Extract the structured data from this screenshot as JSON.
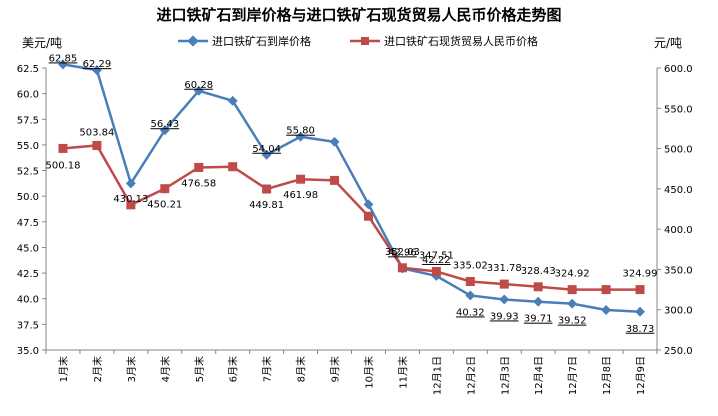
{
  "chart_data": {
    "type": "line",
    "title": "进口铁矿石到岸价格与进口铁矿石现货贸易人民币价格走势图",
    "ylabel_left": "美元/吨",
    "ylabel_right": "元/吨",
    "categories": [
      "1月末",
      "2月末",
      "3月末",
      "4月末",
      "5月末",
      "6月末",
      "7月末",
      "8月末",
      "9月末",
      "10月末",
      "11月末",
      "12月1日",
      "12月2日",
      "12月3日",
      "12月4日",
      "12月7日",
      "12月8日",
      "12月9日"
    ],
    "ylim_left": [
      35.0,
      62.5
    ],
    "ylim_right": [
      250.0,
      600.0
    ],
    "yticks_left": [
      "35.0",
      "37.5",
      "40.0",
      "42.5",
      "45.0",
      "47.5",
      "50.0",
      "52.5",
      "55.0",
      "57.5",
      "60.0",
      "62.5"
    ],
    "yticks_right": [
      "250.0",
      "300.0",
      "350.0",
      "400.0",
      "450.0",
      "500.0",
      "550.0",
      "600.0"
    ],
    "legend_position": "top",
    "grid": false,
    "series": [
      {
        "name": "进口铁矿石到岸价格",
        "axis": "left",
        "color": "#4a7ebb",
        "marker": "diamond",
        "values": [
          62.85,
          62.29,
          51.25,
          56.43,
          60.28,
          59.3,
          54.04,
          55.8,
          55.3,
          49.2,
          42.96,
          42.22,
          40.32,
          39.93,
          39.71,
          39.52,
          38.9,
          38.73
        ],
        "labels": [
          "62.85",
          "62.29",
          "",
          "56.43",
          "60.28",
          "",
          "54.04",
          "55.80",
          "",
          "",
          "42.96",
          "42.22",
          "40.32",
          "39.93",
          "39.71",
          "39.52",
          "",
          "38.73"
        ]
      },
      {
        "name": "进口铁矿石现货贸易人民币价格",
        "axis": "right",
        "color": "#be4b48",
        "marker": "square",
        "values": [
          500.18,
          503.84,
          430.13,
          450.21,
          476.58,
          477.5,
          449.81,
          461.98,
          460.5,
          416.0,
          352.03,
          347.51,
          335.02,
          331.78,
          328.43,
          324.92,
          324.99,
          324.99
        ],
        "labels": [
          "500.18",
          "503.84",
          "430.13",
          "450.21",
          "476.58",
          "",
          "449.81",
          "461.98",
          "",
          "",
          "352.03",
          "347.51",
          "335.02",
          "331.78",
          "328.43",
          "324.92",
          "",
          "324.99"
        ]
      }
    ]
  }
}
